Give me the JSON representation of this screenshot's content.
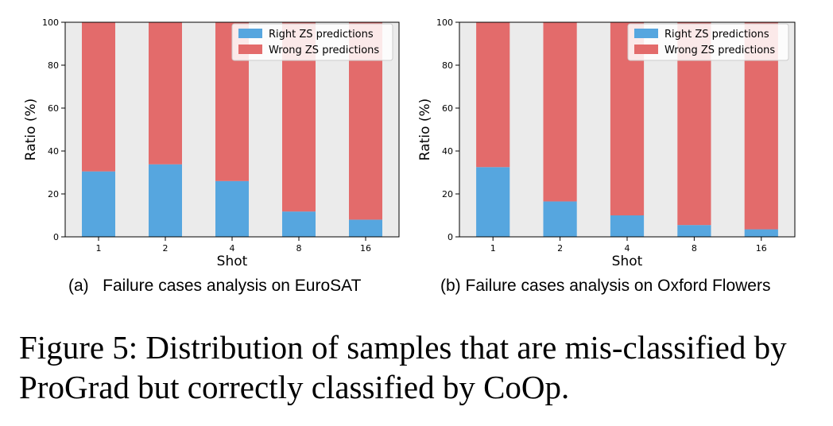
{
  "chart_data": [
    {
      "type": "bar",
      "stacked": true,
      "categories": [
        "1",
        "2",
        "4",
        "8",
        "16"
      ],
      "series": [
        {
          "name": "Right ZS predictions",
          "color": "#56a6df",
          "values": [
            30.5,
            33.8,
            26.0,
            11.8,
            8.0
          ]
        },
        {
          "name": "Wrong ZS predictions",
          "color": "#e36b6b",
          "values": [
            69.5,
            66.2,
            74.0,
            88.2,
            92.0
          ]
        }
      ],
      "xlabel": "Shot",
      "ylabel": "Ratio (%)",
      "ylim": [
        0,
        100
      ],
      "yticks": [
        "0",
        "20",
        "40",
        "60",
        "80",
        "100"
      ],
      "background": "#ebebeb",
      "legend": "top-right",
      "caption": "(a)   Failure cases analysis on EuroSAT"
    },
    {
      "type": "bar",
      "stacked": true,
      "categories": [
        "1",
        "2",
        "4",
        "8",
        "16"
      ],
      "series": [
        {
          "name": "Right ZS predictions",
          "color": "#56a6df",
          "values": [
            32.5,
            16.5,
            10.0,
            5.5,
            3.5
          ]
        },
        {
          "name": "Wrong ZS predictions",
          "color": "#e36b6b",
          "values": [
            67.5,
            83.5,
            90.0,
            94.5,
            96.5
          ]
        }
      ],
      "xlabel": "Shot",
      "ylabel": "Ratio (%)",
      "ylim": [
        0,
        100
      ],
      "yticks": [
        "0",
        "20",
        "40",
        "60",
        "80",
        "100"
      ],
      "background": "#ebebeb",
      "legend": "top-right",
      "caption": "(b) Failure cases analysis on Oxford Flowers"
    }
  ],
  "figure_caption": "Figure 5: Distribution of samples that are mis-classified by ProGrad but correctly classified by CoOp."
}
